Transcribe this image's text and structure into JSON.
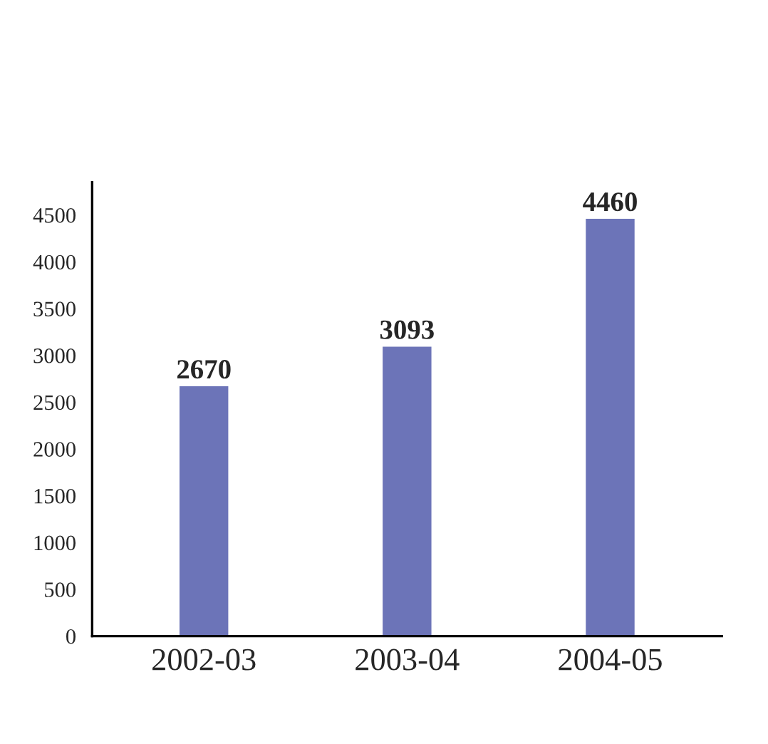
{
  "chart_data": {
    "type": "bar",
    "categories": [
      "2002-03",
      "2003-04",
      "2004-05"
    ],
    "values": [
      2670,
      3093,
      4460
    ],
    "color": "#6c74b8",
    "data_labels": true,
    "ylim": [
      0,
      4850
    ],
    "yticks": [
      0,
      500,
      1000,
      1500,
      2000,
      2500,
      3000,
      3500,
      4000,
      4500
    ],
    "grid": false
  }
}
